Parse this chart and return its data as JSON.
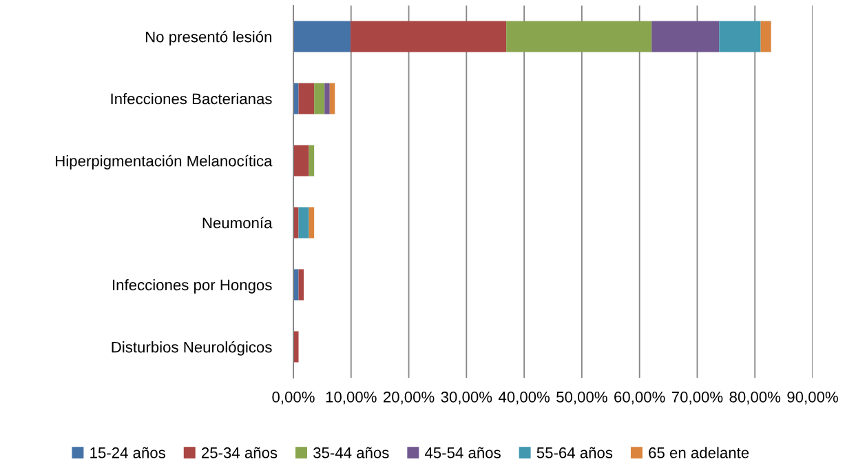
{
  "chart_data": {
    "type": "bar",
    "orientation": "horizontal",
    "stacked": true,
    "categories": [
      "No presentó lesión",
      "Infecciones Bacterianas",
      "Hiperpigmentación Melanocítica",
      "Neumonía",
      "Infecciones por Hongos",
      "Disturbios Neurológicos"
    ],
    "series": [
      {
        "name": "15-24 años",
        "color": "#4572a7",
        "values": [
          9.9,
          0.9,
          null,
          null,
          0.9,
          null
        ]
      },
      {
        "name": "25-34 años",
        "color": "#aa4643",
        "values": [
          27.0,
          2.7,
          2.7,
          0.9,
          0.9,
          0.9
        ]
      },
      {
        "name": "35-44 años",
        "color": "#89a54e",
        "values": [
          25.2,
          1.8,
          0.9,
          null,
          null,
          null
        ]
      },
      {
        "name": "45-54 años",
        "color": "#71588f",
        "values": [
          11.7,
          0.9,
          null,
          null,
          null,
          null
        ]
      },
      {
        "name": "55-64 años",
        "color": "#4198af",
        "values": [
          7.2,
          null,
          null,
          1.8,
          null,
          null
        ]
      },
      {
        "name": "65 en adelante",
        "color": "#db843d",
        "values": [
          1.8,
          0.9,
          null,
          0.9,
          null,
          null
        ]
      }
    ],
    "xlim": [
      0,
      90
    ],
    "xticks": [
      {
        "value": 0,
        "label": "0,00%"
      },
      {
        "value": 10,
        "label": "10,00%"
      },
      {
        "value": 20,
        "label": "20,00%"
      },
      {
        "value": 30,
        "label": "30,00%"
      },
      {
        "value": 40,
        "label": "40,00%"
      },
      {
        "value": 50,
        "label": "50,00%"
      },
      {
        "value": 60,
        "label": "60,00%"
      },
      {
        "value": 70,
        "label": "70,00%"
      },
      {
        "value": 80,
        "label": "80,00%"
      },
      {
        "value": 90,
        "label": "90,00%"
      }
    ],
    "grid": "x",
    "legend": "bottom"
  }
}
